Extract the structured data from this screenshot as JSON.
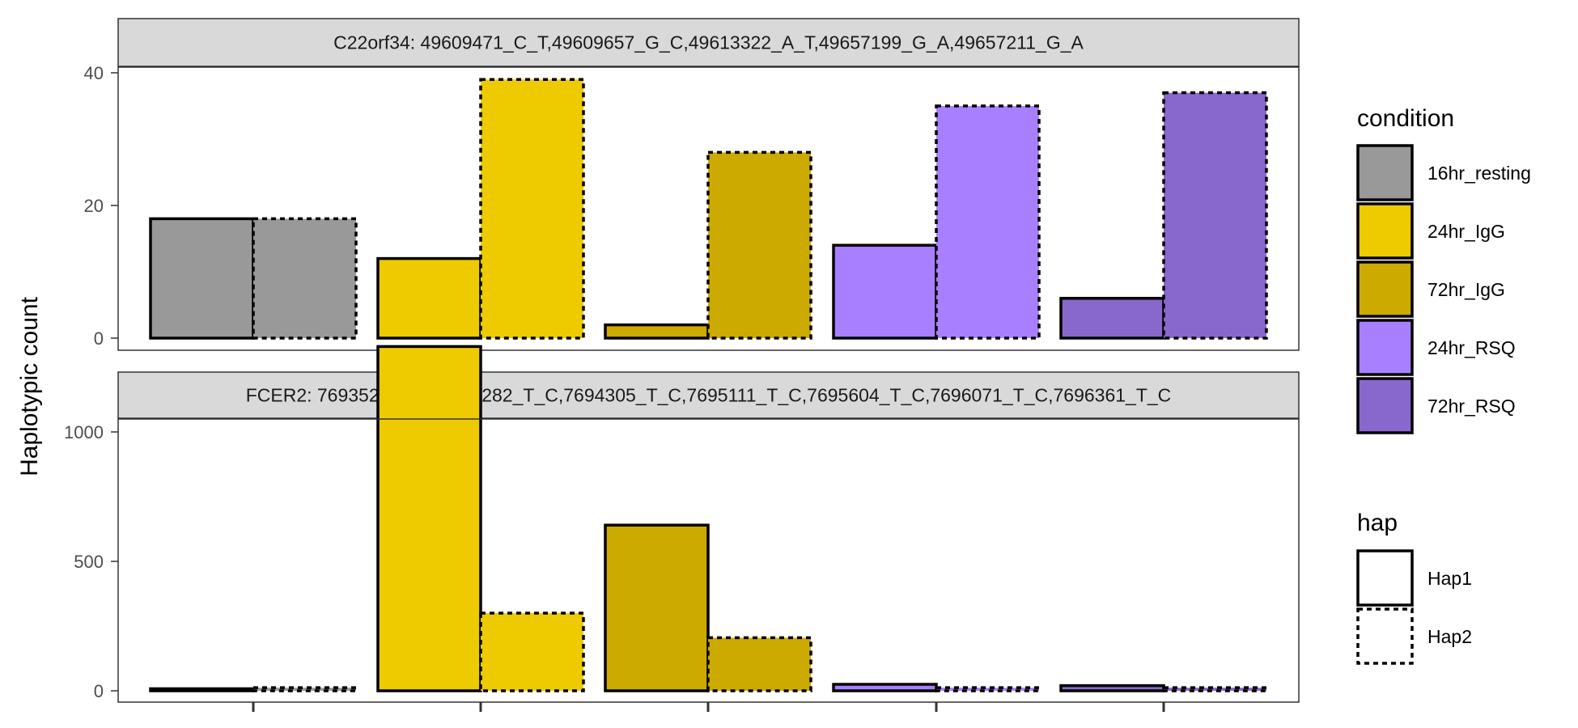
{
  "chart_data": {
    "type": "bar",
    "ylabel": "Haplotypic count",
    "xlabel": "",
    "conditions": [
      "16hr_resting",
      "24hr_IgG",
      "72hr_IgG",
      "24hr_RSQ",
      "72hr_RSQ"
    ],
    "haps": [
      "Hap1",
      "Hap2"
    ],
    "legend": {
      "condition_title": "condition",
      "hap_title": "hap",
      "placement": "right"
    },
    "colors": {
      "16hr_resting": "#999999",
      "24hr_IgG": "#EECA00",
      "72hr_IgG": "#CCAA00",
      "24hr_RSQ": "#A880FF",
      "72hr_RSQ": "#8868CC"
    },
    "panels": [
      {
        "strip": "C22orf34: 49609471_C_T,49609657_G_C,49613322_A_T,49657199_G_A,49657211_G_A",
        "ylim": [
          0,
          42
        ],
        "yticks": [
          0,
          20,
          40
        ],
        "series": [
          {
            "name": "Hap1",
            "values": [
              18,
              12,
              2,
              14,
              6
            ]
          },
          {
            "name": "Hap2",
            "values": [
              18,
              39,
              28,
              35,
              37
            ]
          }
        ]
      },
      {
        "strip": "FCER2: 7693529_T_C,7694282_T_C,7694305_T_C,7695111_T_C,7695604_T_C,7696071_T_C,7696361_T_C",
        "ylim": [
          0,
          1400
        ],
        "yticks": [
          0,
          500,
          1000
        ],
        "series": [
          {
            "name": "Hap1",
            "values": [
              8,
              1330,
              640,
              25,
              20
            ]
          },
          {
            "name": "Hap2",
            "values": [
              12,
              300,
              205,
              12,
              12
            ]
          }
        ]
      }
    ]
  }
}
